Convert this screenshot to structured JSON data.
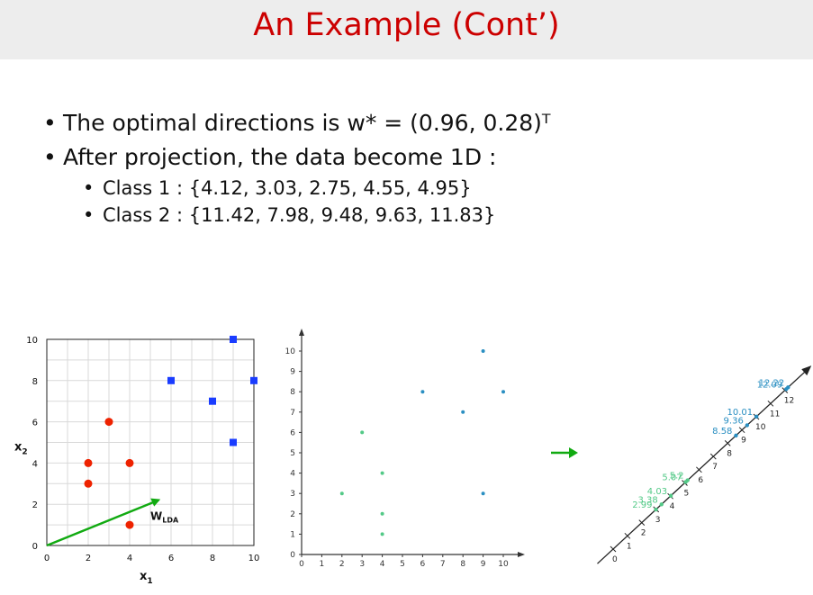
{
  "slide": {
    "title": "An Example (Cont’)",
    "bullets": [
      "The optimal directions is w* = (0.96, 0.28)ᵀ",
      "After projection, the data become 1D :"
    ],
    "sub_bullets": [
      "Class 1 : {4.12, 3.03, 2.75, 4.55, 4.95}",
      "Class 2 : {11.42, 7.98, 9.48, 9.63, 11.83}"
    ]
  },
  "colors": {
    "title": "#cc0000",
    "class1": "#ee2200",
    "class2": "#1a3cff",
    "teal": "#2a8fc2",
    "mint": "#53c987",
    "arrow": "#11aa11"
  },
  "chart_data": [
    {
      "type": "scatter",
      "xlabel": "x1",
      "ylabel": "x2",
      "xlim": [
        0,
        10
      ],
      "ylim": [
        0,
        10
      ],
      "xticks": [
        0,
        2,
        4,
        6,
        8,
        10
      ],
      "yticks": [
        0,
        2,
        4,
        6,
        8,
        10
      ],
      "grid": true,
      "annotation": "WLDA",
      "direction_vector": [
        [
          0,
          0
        ],
        [
          5.4,
          2.2
        ]
      ],
      "series": [
        {
          "marker": "circle",
          "color": "#ee2200",
          "points": [
            [
              2,
              4
            ],
            [
              2,
              3
            ],
            [
              3,
              6
            ],
            [
              4,
              4
            ],
            [
              4,
              1
            ]
          ]
        },
        {
          "marker": "square",
          "color": "#1a3cff",
          "points": [
            [
              6,
              8
            ],
            [
              8,
              7
            ],
            [
              9,
              10
            ],
            [
              9,
              5
            ],
            [
              10,
              8
            ]
          ]
        }
      ]
    },
    {
      "type": "scatter",
      "xlim": [
        0,
        10
      ],
      "ylim": [
        0,
        10
      ],
      "xticks": [
        0,
        1,
        2,
        3,
        4,
        5,
        6,
        7,
        8,
        9,
        10
      ],
      "yticks": [
        0,
        1,
        2,
        3,
        4,
        5,
        6,
        7,
        8,
        9,
        10
      ],
      "series": [
        {
          "color": "#53c987",
          "points": [
            [
              2,
              3
            ],
            [
              3,
              6
            ],
            [
              4,
              4
            ],
            [
              4,
              2
            ],
            [
              4,
              1
            ]
          ]
        },
        {
          "color": "#2a8fc2",
          "points": [
            [
              6,
              8
            ],
            [
              8,
              7
            ],
            [
              9,
              10
            ],
            [
              9,
              3
            ],
            [
              10,
              8
            ]
          ]
        }
      ]
    },
    {
      "type": "number-line",
      "ticks": [
        "0",
        "1",
        "2",
        "3",
        "4",
        "5",
        "6",
        "7",
        "8",
        "9",
        "10",
        "11",
        "12"
      ],
      "class1_labels": [
        "2.99",
        "3.38",
        "4.03",
        "5.07",
        "5.2"
      ],
      "class1_positions": [
        2.99,
        3.38,
        4.03,
        5.07,
        5.2
      ],
      "class2_labels": [
        "8.58",
        "9.36",
        "10.01",
        "12.09",
        "12.22"
      ],
      "class2_positions": [
        8.58,
        9.36,
        10.01,
        12.09,
        12.22
      ]
    }
  ]
}
